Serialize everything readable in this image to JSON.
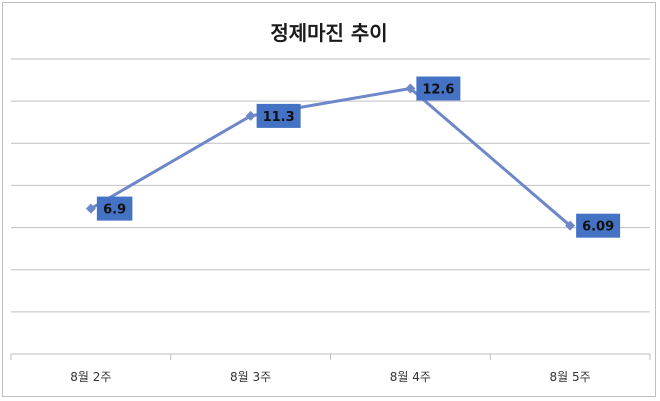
{
  "chart_data": {
    "type": "line",
    "title": "정제마진 추이",
    "xlabel": "",
    "ylabel": "",
    "categories": [
      "8월 2주",
      "8월 3주",
      "8월 4주",
      "8월 5주"
    ],
    "series": [
      {
        "values": [
          6.9,
          11.3,
          12.6,
          6.09
        ],
        "labels": [
          "6.9",
          "11.3",
          "12.6",
          "6.09"
        ]
      }
    ],
    "ylim": [
      0,
      14
    ],
    "grid": true,
    "legend": "none",
    "colors": {
      "line": "#6d87c8",
      "label_bg": "#4472c4"
    }
  }
}
